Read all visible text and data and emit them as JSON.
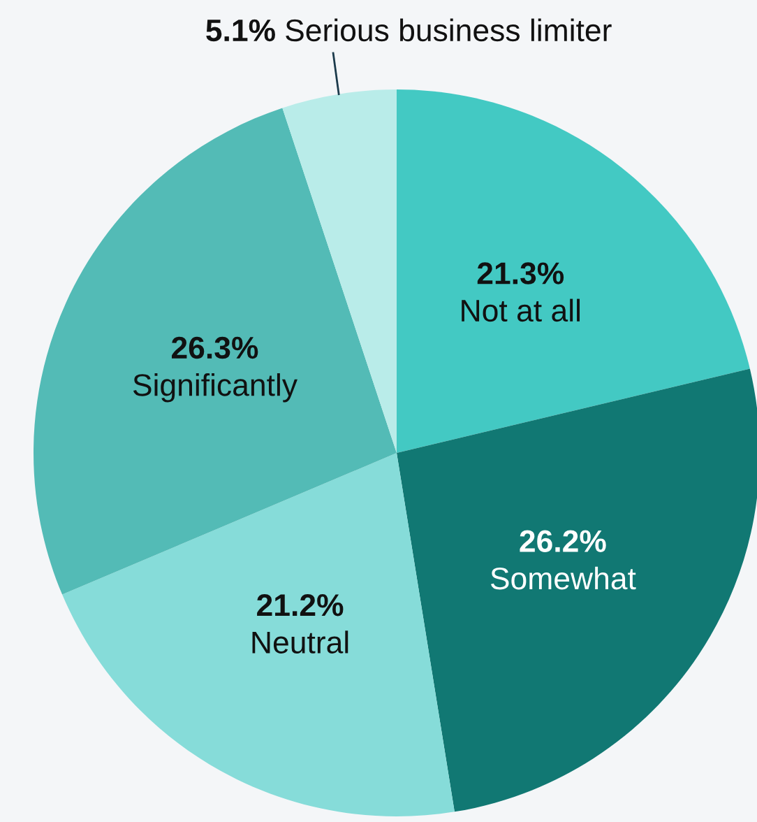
{
  "chart_data": {
    "type": "pie",
    "categories": [
      "Not at all",
      "Somewhat",
      "Neutral",
      "Significantly",
      "Serious business limiter"
    ],
    "values": [
      21.3,
      26.2,
      21.2,
      26.3,
      5.1
    ],
    "value_labels": [
      "21.3%",
      "26.2%",
      "21.2%",
      "26.3%",
      "5.1%"
    ],
    "colors": [
      "#43c9c3",
      "#117873",
      "#86dcd9",
      "#53bbb6",
      "#b9ece9"
    ],
    "legend": false
  }
}
